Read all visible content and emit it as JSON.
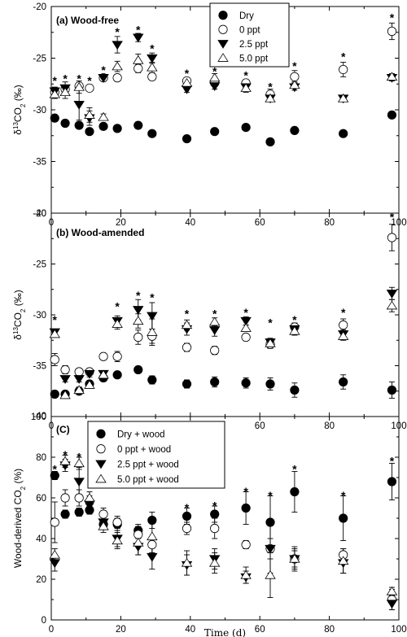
{
  "chart_data": [
    {
      "type": "scatter",
      "title": "(a) Wood-free",
      "ylabel": "δ13CO2 (‰)",
      "ylabel_parts": {
        "delta": "δ",
        "sup": "13",
        "base": "CO",
        "sub": "2",
        "unit": " (‰)"
      },
      "xlim": [
        0,
        100
      ],
      "ylim": [
        -40,
        -20
      ],
      "xticks": [
        "0",
        "20",
        "40",
        "60",
        "80",
        "100"
      ],
      "yticks": [
        "-20",
        "-25",
        "-30",
        "-35",
        "-40"
      ],
      "legend": {
        "position": "top-right",
        "entries": [
          "Dry",
          "0 ppt",
          "2.5 ppt",
          "5.0 ppt"
        ]
      },
      "series": [
        {
          "name": "Dry",
          "marker": "filled-circle",
          "x": [
            1,
            4,
            8,
            11,
            15,
            19,
            25,
            29,
            39,
            47,
            56,
            63,
            70,
            84,
            98
          ],
          "y": [
            -30.8,
            -31.3,
            -31.5,
            -32.1,
            -31.6,
            -31.8,
            -31.5,
            -32.3,
            -32.8,
            -32.1,
            -31.7,
            -33.1,
            -32.0,
            -32.3,
            -30.5
          ],
          "err": [
            0,
            0,
            0,
            0,
            0,
            0,
            0,
            0,
            0,
            0,
            0,
            0,
            0,
            0,
            0.3
          ]
        },
        {
          "name": "0 ppt",
          "marker": "open-circle",
          "x": [
            1,
            4,
            8,
            11,
            15,
            19,
            25,
            29,
            39,
            47,
            56,
            63,
            70,
            84,
            98
          ],
          "y": [
            -28.3,
            -28.0,
            -27.7,
            -27.9,
            -26.9,
            -26.9,
            -26.0,
            -26.8,
            -27.2,
            -27.4,
            -27.4,
            -28.5,
            -26.8,
            -26.1,
            -22.4
          ],
          "err": [
            0.4,
            0.4,
            0.3,
            0.3,
            0.3,
            0.3,
            0.4,
            0.3,
            0.3,
            0.3,
            0.3,
            0.5,
            0.6,
            0.7,
            0.8
          ]
        },
        {
          "name": "2.5 ppt",
          "marker": "filled-triangle-down",
          "x": [
            1,
            4,
            8,
            11,
            15,
            19,
            25,
            29,
            39,
            47,
            56,
            63,
            70,
            84,
            98
          ],
          "y": [
            -28.2,
            -27.9,
            -29.5,
            -30.8,
            -26.9,
            -23.7,
            -23.0,
            -25.0,
            -28.0,
            -27.7,
            -27.8,
            -28.9,
            -27.8,
            -28.9,
            -26.9
          ],
          "err": [
            0.4,
            0.6,
            1.5,
            0.7,
            0.3,
            0.8,
            0.4,
            0.5,
            0.3,
            0.3,
            0.3,
            0.3,
            0.3,
            0.3,
            0.3
          ]
        },
        {
          "name": "5.0 ppt",
          "marker": "open-triangle-up",
          "x": [
            1,
            4,
            8,
            11,
            15,
            19,
            25,
            29,
            39,
            47,
            56,
            63,
            70,
            84,
            98
          ],
          "y": [
            -28.5,
            -28.3,
            -27.8,
            -30.5,
            -30.7,
            -25.8,
            -25.2,
            -25.9,
            -27.4,
            -26.9,
            -27.9,
            -28.9,
            -27.6,
            -28.9,
            -26.8
          ],
          "err": [
            0.4,
            0.6,
            0.6,
            0.7,
            0.3,
            0.5,
            0.6,
            0.5,
            0.3,
            0.4,
            0.4,
            0.3,
            0.3,
            0.3,
            0.3
          ]
        }
      ],
      "annotations": [
        {
          "text": "*",
          "x": 1,
          "y": -27.0
        },
        {
          "text": "*",
          "x": 4,
          "y": -26.8
        },
        {
          "text": "*",
          "x": 8,
          "y": -26.8
        },
        {
          "text": "*",
          "x": 11,
          "y": -27.0
        },
        {
          "text": "*",
          "x": 15,
          "y": -26.0
        },
        {
          "text": "*",
          "x": 19,
          "y": -22.3
        },
        {
          "text": "*",
          "x": 25,
          "y": -22.1
        },
        {
          "text": "*",
          "x": 29,
          "y": -23.9
        },
        {
          "text": "*",
          "x": 39,
          "y": -26.3
        },
        {
          "text": "*",
          "x": 47,
          "y": -26.1
        },
        {
          "text": "*",
          "x": 56,
          "y": -26.5
        },
        {
          "text": "*",
          "x": 63,
          "y": -27.6
        },
        {
          "text": "*",
          "x": 70,
          "y": -25.6
        },
        {
          "text": "*",
          "x": 84,
          "y": -24.7
        },
        {
          "text": "*",
          "x": 98,
          "y": -20.9
        }
      ]
    },
    {
      "type": "scatter",
      "title": "(b) Wood-amended",
      "ylabel": "δ13CO2 (‰)",
      "ylabel_parts": {
        "delta": "δ",
        "sup": "13",
        "base": "CO",
        "sub": "2",
        "unit": " (‰)"
      },
      "xlim": [
        0,
        100
      ],
      "ylim": [
        -40,
        -20
      ],
      "xticks": [
        "0",
        "20",
        "40",
        "60",
        "80",
        "100"
      ],
      "yticks": [
        "-20",
        "-25",
        "-30",
        "-35",
        "-40"
      ],
      "series": [
        {
          "name": "Dry",
          "marker": "filled-circle",
          "x": [
            1,
            4,
            8,
            11,
            15,
            19,
            25,
            29,
            39,
            47,
            56,
            63,
            70,
            84,
            98
          ],
          "y": [
            -37.8,
            -37.8,
            -37.5,
            -36.8,
            -36.2,
            -35.9,
            -35.4,
            -36.4,
            -36.8,
            -36.6,
            -36.7,
            -36.8,
            -37.4,
            -36.6,
            -37.4
          ],
          "err": [
            0,
            0,
            0,
            0,
            0.3,
            0.3,
            0.3,
            0.4,
            0.4,
            0.5,
            0.5,
            0.6,
            0.7,
            0.7,
            0.8
          ]
        },
        {
          "name": "0 ppt",
          "marker": "open-circle",
          "x": [
            1,
            4,
            8,
            11,
            15,
            19,
            25,
            29,
            39,
            47,
            56,
            63,
            70,
            84,
            98
          ],
          "y": [
            -34.4,
            -35.4,
            -35.6,
            -35.6,
            -34.1,
            -34.1,
            -32.2,
            -32.1,
            -33.2,
            -33.5,
            -32.2,
            -32.9,
            -31.2,
            -31.0,
            -22.4
          ],
          "err": [
            0.6,
            0.4,
            0.3,
            0.3,
            0.3,
            0.5,
            0.7,
            0.7,
            0.4,
            0.4,
            0.3,
            0.4,
            0.4,
            0.6,
            1.3
          ]
        },
        {
          "name": "2.5 ppt",
          "marker": "filled-triangle-down",
          "x": [
            1,
            4,
            8,
            11,
            15,
            19,
            25,
            29,
            39,
            47,
            56,
            63,
            70,
            84,
            98
          ],
          "y": [
            -31.7,
            -36.3,
            -36.3,
            -35.8,
            -35.8,
            -30.6,
            -29.5,
            -30.1,
            -31.4,
            -31.5,
            -30.6,
            -32.7,
            -31.4,
            -31.9,
            -27.9
          ],
          "err": [
            0.3,
            0.3,
            0.3,
            0.3,
            0.3,
            0.5,
            1.0,
            1.3,
            0.6,
            0.6,
            0.4,
            0.4,
            0.4,
            0.4,
            0.6
          ]
        },
        {
          "name": "5.0 ppt",
          "marker": "open-triangle-up",
          "x": [
            1,
            4,
            8,
            11,
            15,
            19,
            25,
            29,
            39,
            47,
            56,
            63,
            70,
            84,
            98
          ],
          "y": [
            -31.9,
            -37.9,
            -37.4,
            -36.9,
            -35.9,
            -30.9,
            -30.6,
            -31.7,
            -31.0,
            -30.7,
            -31.3,
            -32.8,
            -31.6,
            -32.1,
            -29.1
          ],
          "err": [
            0.3,
            0.3,
            0.3,
            0.3,
            0.3,
            0.5,
            0.7,
            1.3,
            0.5,
            0.4,
            0.3,
            0.4,
            0.4,
            0.4,
            0.6
          ]
        }
      ],
      "annotations": [
        {
          "text": "*",
          "x": 1,
          "y": -30.3
        },
        {
          "text": "*",
          "x": 19,
          "y": -29.0
        },
        {
          "text": "*",
          "x": 25,
          "y": -27.9
        },
        {
          "text": "*",
          "x": 29,
          "y": -28.1
        },
        {
          "text": "*",
          "x": 39,
          "y": -29.7
        },
        {
          "text": "*",
          "x": 47,
          "y": -29.7
        },
        {
          "text": "*",
          "x": 56,
          "y": -29.6
        },
        {
          "text": "*",
          "x": 63,
          "y": -30.6
        },
        {
          "text": "*",
          "x": 70,
          "y": -30.3
        },
        {
          "text": "*",
          "x": 84,
          "y": -29.6
        },
        {
          "text": "*",
          "x": 98,
          "y": -20.2
        }
      ]
    },
    {
      "type": "scatter",
      "title": "(C)",
      "ylabel": "Wood-derived CO2 (%)",
      "ylabel_parts": {
        "delta": "",
        "sup": "",
        "base": "Wood-derived CO",
        "sub": "2",
        "unit": " (%)"
      },
      "xlabel": "Time (d)",
      "xlim": [
        0,
        100
      ],
      "ylim": [
        0,
        100
      ],
      "xticks": [
        "0",
        "20",
        "40",
        "60",
        "80",
        "100"
      ],
      "yticks": [
        "0",
        "20",
        "40",
        "60",
        "80",
        "100"
      ],
      "legend": {
        "position": "top-left",
        "entries": [
          "Dry + wood",
          "0 ppt + wood",
          "2.5 ppt + wood",
          "5.0 ppt + wood"
        ]
      },
      "series": [
        {
          "name": "Dry + wood",
          "marker": "filled-circle",
          "x": [
            1,
            4,
            8,
            11,
            15,
            19,
            25,
            29,
            39,
            47,
            56,
            63,
            70,
            84,
            98
          ],
          "y": [
            71,
            52,
            53,
            54,
            47,
            47,
            44,
            49,
            51,
            52,
            55,
            48,
            63,
            50,
            68
          ],
          "err": [
            2,
            2,
            2,
            2,
            2,
            3,
            3,
            4,
            4,
            4,
            8,
            13,
            10,
            11,
            9
          ]
        },
        {
          "name": "0 ppt + wood",
          "marker": "open-circle",
          "x": [
            1,
            4,
            8,
            11,
            15,
            19,
            25,
            29,
            39,
            47,
            56,
            63,
            70,
            84,
            98
          ],
          "y": [
            48,
            60,
            60,
            58,
            52,
            48,
            42,
            37,
            45,
            45,
            37,
            35,
            30,
            32,
            10
          ],
          "err": [
            10,
            4,
            4,
            3,
            3,
            3,
            4,
            4,
            3,
            5,
            2,
            5,
            4,
            3,
            5
          ]
        },
        {
          "name": "2.5 ppt + wood",
          "marker": "filled-triangle-down",
          "x": [
            1,
            4,
            8,
            11,
            15,
            19,
            25,
            29,
            39,
            47,
            56,
            63,
            70,
            84,
            98
          ],
          "y": [
            28,
            76,
            68,
            57,
            48,
            40,
            36,
            31,
            27,
            30,
            21,
            35,
            30,
            28,
            8
          ],
          "err": [
            4,
            3,
            7,
            3,
            3,
            4,
            4,
            6,
            5,
            5,
            3,
            12,
            5,
            5,
            3
          ]
        },
        {
          "name": "5.0 ppt + wood",
          "marker": "open-triangle-up",
          "x": [
            1,
            4,
            8,
            11,
            15,
            19,
            25,
            29,
            39,
            47,
            56,
            63,
            70,
            84,
            98
          ],
          "y": [
            32,
            78,
            77,
            60,
            46,
            39,
            38,
            41,
            28,
            28,
            22,
            22,
            30,
            29,
            14
          ],
          "err": [
            3,
            3,
            3,
            3,
            3,
            4,
            6,
            8,
            6,
            5,
            4,
            11,
            6,
            6,
            2
          ]
        }
      ],
      "annotations": [
        {
          "text": "*",
          "x": 1,
          "y": 75
        },
        {
          "text": "*",
          "x": 4,
          "y": 82
        },
        {
          "text": "*",
          "x": 8,
          "y": 81
        },
        {
          "text": "*",
          "x": 39,
          "y": 56
        },
        {
          "text": "*",
          "x": 47,
          "y": 57
        },
        {
          "text": "*",
          "x": 56,
          "y": 64
        },
        {
          "text": "*",
          "x": 63,
          "y": 62
        },
        {
          "text": "*",
          "x": 70,
          "y": 75
        },
        {
          "text": "*",
          "x": 84,
          "y": 62
        },
        {
          "text": "*",
          "x": 98,
          "y": 79
        }
      ]
    }
  ]
}
